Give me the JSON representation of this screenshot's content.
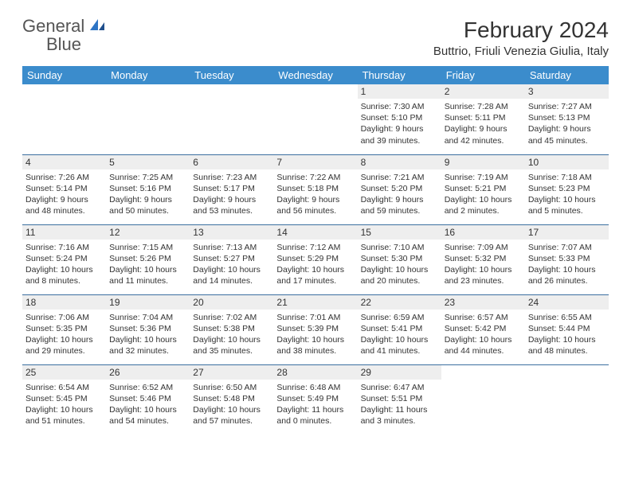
{
  "logo": {
    "word1": "General",
    "word2": "Blue"
  },
  "title": "February 2024",
  "location": "Buttrio, Friuli Venezia Giulia, Italy",
  "colors": {
    "header_bg": "#3b8ccc",
    "header_text": "#ffffff",
    "row_border": "#3b6fa0",
    "daynum_bg": "#eeeeee",
    "text": "#333333",
    "logo_gray": "#555555",
    "logo_blue": "#2e75c5",
    "background": "#ffffff"
  },
  "typography": {
    "title_fontsize": 28,
    "location_fontsize": 15,
    "dayheader_fontsize": 13,
    "daynum_fontsize": 12,
    "detail_fontsize": 10.5,
    "logo_fontsize": 22
  },
  "day_headers": [
    "Sunday",
    "Monday",
    "Tuesday",
    "Wednesday",
    "Thursday",
    "Friday",
    "Saturday"
  ],
  "weeks": [
    [
      {
        "empty": true
      },
      {
        "empty": true
      },
      {
        "empty": true
      },
      {
        "empty": true
      },
      {
        "num": "1",
        "sunrise": "7:30 AM",
        "sunset": "5:10 PM",
        "daylight": "9 hours and 39 minutes."
      },
      {
        "num": "2",
        "sunrise": "7:28 AM",
        "sunset": "5:11 PM",
        "daylight": "9 hours and 42 minutes."
      },
      {
        "num": "3",
        "sunrise": "7:27 AM",
        "sunset": "5:13 PM",
        "daylight": "9 hours and 45 minutes."
      }
    ],
    [
      {
        "num": "4",
        "sunrise": "7:26 AM",
        "sunset": "5:14 PM",
        "daylight": "9 hours and 48 minutes."
      },
      {
        "num": "5",
        "sunrise": "7:25 AM",
        "sunset": "5:16 PM",
        "daylight": "9 hours and 50 minutes."
      },
      {
        "num": "6",
        "sunrise": "7:23 AM",
        "sunset": "5:17 PM",
        "daylight": "9 hours and 53 minutes."
      },
      {
        "num": "7",
        "sunrise": "7:22 AM",
        "sunset": "5:18 PM",
        "daylight": "9 hours and 56 minutes."
      },
      {
        "num": "8",
        "sunrise": "7:21 AM",
        "sunset": "5:20 PM",
        "daylight": "9 hours and 59 minutes."
      },
      {
        "num": "9",
        "sunrise": "7:19 AM",
        "sunset": "5:21 PM",
        "daylight": "10 hours and 2 minutes."
      },
      {
        "num": "10",
        "sunrise": "7:18 AM",
        "sunset": "5:23 PM",
        "daylight": "10 hours and 5 minutes."
      }
    ],
    [
      {
        "num": "11",
        "sunrise": "7:16 AM",
        "sunset": "5:24 PM",
        "daylight": "10 hours and 8 minutes."
      },
      {
        "num": "12",
        "sunrise": "7:15 AM",
        "sunset": "5:26 PM",
        "daylight": "10 hours and 11 minutes."
      },
      {
        "num": "13",
        "sunrise": "7:13 AM",
        "sunset": "5:27 PM",
        "daylight": "10 hours and 14 minutes."
      },
      {
        "num": "14",
        "sunrise": "7:12 AM",
        "sunset": "5:29 PM",
        "daylight": "10 hours and 17 minutes."
      },
      {
        "num": "15",
        "sunrise": "7:10 AM",
        "sunset": "5:30 PM",
        "daylight": "10 hours and 20 minutes."
      },
      {
        "num": "16",
        "sunrise": "7:09 AM",
        "sunset": "5:32 PM",
        "daylight": "10 hours and 23 minutes."
      },
      {
        "num": "17",
        "sunrise": "7:07 AM",
        "sunset": "5:33 PM",
        "daylight": "10 hours and 26 minutes."
      }
    ],
    [
      {
        "num": "18",
        "sunrise": "7:06 AM",
        "sunset": "5:35 PM",
        "daylight": "10 hours and 29 minutes."
      },
      {
        "num": "19",
        "sunrise": "7:04 AM",
        "sunset": "5:36 PM",
        "daylight": "10 hours and 32 minutes."
      },
      {
        "num": "20",
        "sunrise": "7:02 AM",
        "sunset": "5:38 PM",
        "daylight": "10 hours and 35 minutes."
      },
      {
        "num": "21",
        "sunrise": "7:01 AM",
        "sunset": "5:39 PM",
        "daylight": "10 hours and 38 minutes."
      },
      {
        "num": "22",
        "sunrise": "6:59 AM",
        "sunset": "5:41 PM",
        "daylight": "10 hours and 41 minutes."
      },
      {
        "num": "23",
        "sunrise": "6:57 AM",
        "sunset": "5:42 PM",
        "daylight": "10 hours and 44 minutes."
      },
      {
        "num": "24",
        "sunrise": "6:55 AM",
        "sunset": "5:44 PM",
        "daylight": "10 hours and 48 minutes."
      }
    ],
    [
      {
        "num": "25",
        "sunrise": "6:54 AM",
        "sunset": "5:45 PM",
        "daylight": "10 hours and 51 minutes."
      },
      {
        "num": "26",
        "sunrise": "6:52 AM",
        "sunset": "5:46 PM",
        "daylight": "10 hours and 54 minutes."
      },
      {
        "num": "27",
        "sunrise": "6:50 AM",
        "sunset": "5:48 PM",
        "daylight": "10 hours and 57 minutes."
      },
      {
        "num": "28",
        "sunrise": "6:48 AM",
        "sunset": "5:49 PM",
        "daylight": "11 hours and 0 minutes."
      },
      {
        "num": "29",
        "sunrise": "6:47 AM",
        "sunset": "5:51 PM",
        "daylight": "11 hours and 3 minutes."
      },
      {
        "empty": true
      },
      {
        "empty": true
      }
    ]
  ]
}
